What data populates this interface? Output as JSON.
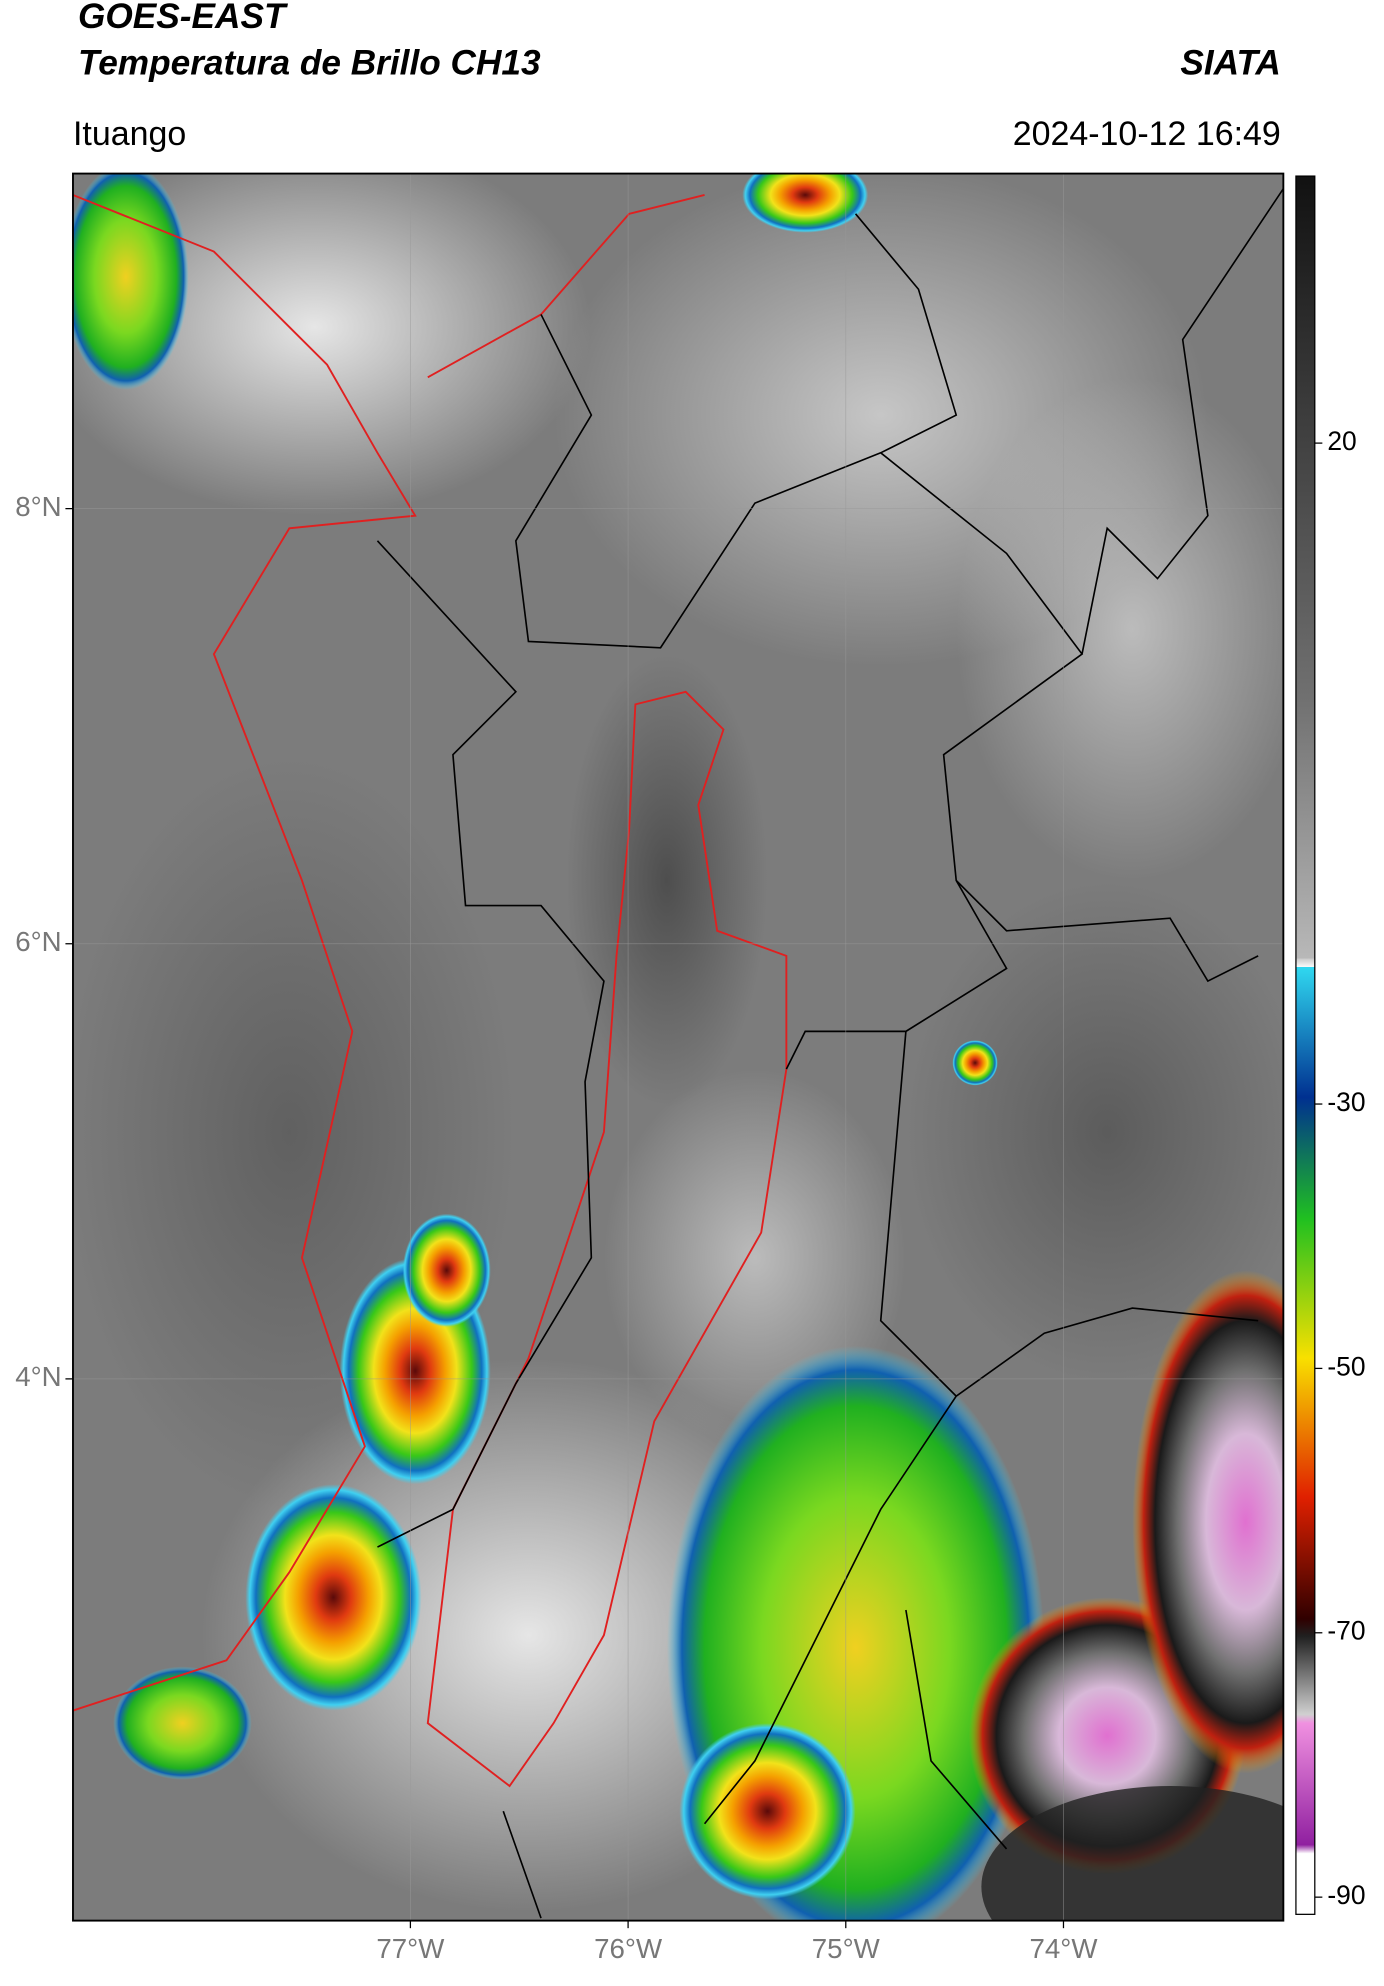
{
  "header": {
    "title_line1": "GOES-EAST",
    "title_line2": "Temperatura de Brillo CH13",
    "source": "SIATA",
    "location": "Ituango",
    "timestamp": "2024-10-12 16:49"
  },
  "map": {
    "type": "map",
    "xlim": [
      -78.55,
      -72.99
    ],
    "ylim": [
      1.51,
      9.54
    ],
    "xticks": [
      {
        "value": -77,
        "label": "77°W"
      },
      {
        "value": -76,
        "label": "76°W"
      },
      {
        "value": -75,
        "label": "75°W"
      },
      {
        "value": -74,
        "label": "74°W"
      }
    ],
    "yticks": [
      {
        "value": 8,
        "label": "8°N"
      },
      {
        "value": 6,
        "label": "6°N"
      },
      {
        "value": 4,
        "label": "4°N"
      }
    ],
    "grid": true
  },
  "colorbar": {
    "lim": [
      -91.3,
      40.2
    ],
    "ticks": [
      20,
      -30,
      -50,
      -70,
      -90
    ]
  }
}
